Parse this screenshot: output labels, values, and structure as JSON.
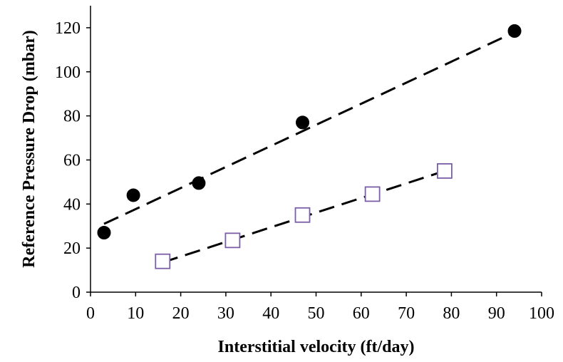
{
  "chart_data": {
    "type": "scatter",
    "xlabel": "Interstitial velocity (ft/day)",
    "ylabel": "Reference Pressure Drop (mbar)",
    "xlim": [
      0,
      100
    ],
    "ylim": [
      0,
      130
    ],
    "xticks": [
      0,
      10,
      20,
      30,
      40,
      50,
      60,
      70,
      80,
      90,
      100
    ],
    "yticks": [
      0,
      20,
      40,
      60,
      80,
      100,
      120
    ],
    "grid": false,
    "legend": "none",
    "series": [
      {
        "marker": "filled-circle",
        "color": "#000000",
        "x": [
          3,
          9.5,
          24,
          47,
          94
        ],
        "y": [
          27,
          44,
          49.5,
          77,
          118.5
        ],
        "trendline": {
          "style": "dashed",
          "color": "#000000",
          "x": [
            3,
            94
          ],
          "y": [
            31,
            118
          ]
        }
      },
      {
        "marker": "open-square",
        "color": "#7b5ea7",
        "x": [
          16,
          31.5,
          47,
          62.5,
          78.5
        ],
        "y": [
          14,
          23.5,
          35,
          44.5,
          55
        ],
        "trendline": {
          "style": "dashed",
          "color": "#000000",
          "x": [
            16,
            78.5
          ],
          "y": [
            13.5,
            55
          ]
        }
      }
    ]
  }
}
